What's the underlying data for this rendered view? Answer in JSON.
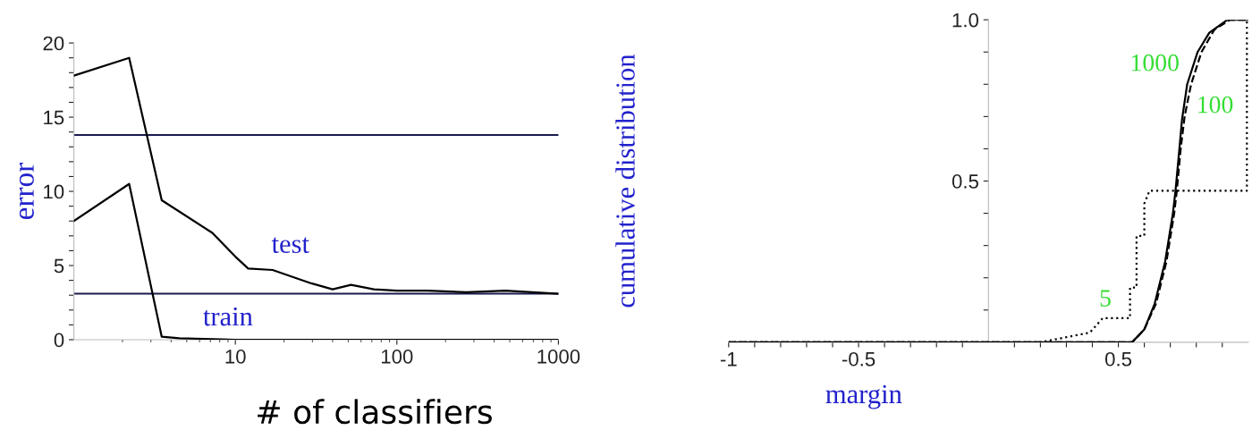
{
  "chart_data": [
    {
      "type": "line",
      "xlabel": "# of classifiers",
      "ylabel": "error",
      "log": "x",
      "xlim": [
        1,
        1000
      ],
      "ylim": [
        0,
        20
      ],
      "xticks": [
        10,
        100,
        1000
      ],
      "yticks": [
        0,
        {
          "value": 1,
          "label": null
        },
        {
          "value": 2,
          "label": null
        },
        {
          "value": 3,
          "label": null
        },
        {
          "value": 4,
          "label": null
        },
        5,
        {
          "value": 6,
          "label": null
        },
        {
          "value": 7,
          "label": null
        },
        {
          "value": 8,
          "label": null
        },
        {
          "value": 9,
          "label": null
        },
        10,
        {
          "value": 11,
          "label": null
        },
        {
          "value": 12,
          "label": null
        },
        {
          "value": 13,
          "label": null
        },
        {
          "value": 14,
          "label": null
        },
        15,
        {
          "value": 16,
          "label": null
        },
        {
          "value": 17,
          "label": null
        },
        {
          "value": 18,
          "label": null
        },
        {
          "value": 19,
          "label": null
        },
        20
      ],
      "series": [
        {
          "name": "test",
          "color": "#000000",
          "line_style": "solid",
          "x": [
            1,
            2.2,
            3.5,
            7.2,
            10,
            12,
            17,
            29.5,
            40,
            52,
            72,
            100,
            155,
            270,
            470,
            1000
          ],
          "values": [
            17.8,
            19.0,
            9.4,
            7.2,
            5.6,
            4.8,
            4.7,
            3.8,
            3.4,
            3.7,
            3.4,
            3.3,
            3.3,
            3.2,
            3.3,
            3.1
          ]
        },
        {
          "name": "train",
          "color": "#000000",
          "line_style": "solid",
          "x": [
            1,
            2.2,
            3.5,
            4.5,
            10,
            1000
          ],
          "values": [
            8.0,
            10.5,
            0.2,
            0.1,
            0,
            0
          ]
        }
      ],
      "ref_lines": [
        {
          "axis": "y",
          "value": 13.8,
          "color": "#1a1a4e"
        },
        {
          "axis": "y",
          "value": 3.1,
          "color": "#1a1a4e"
        }
      ]
    },
    {
      "type": "line",
      "xlabel": "margin",
      "ylabel": "cumulative distribution",
      "xlim": [
        -1,
        1
      ],
      "ylim": [
        0,
        1
      ],
      "xticks": [
        -1,
        {
          "value": -0.9,
          "label": null
        },
        {
          "value": -0.8,
          "label": null
        },
        {
          "value": -0.7,
          "label": null
        },
        {
          "value": -0.6,
          "label": null
        },
        -0.5,
        {
          "value": -0.4,
          "label": null
        },
        {
          "value": -0.3,
          "label": null
        },
        {
          "value": -0.2,
          "label": null
        },
        {
          "value": -0.1,
          "label": null
        },
        {
          "value": 0.1,
          "label": null
        },
        {
          "value": 0.2,
          "label": null
        },
        {
          "value": 0.3,
          "label": null
        },
        {
          "value": 0.4,
          "label": null
        },
        0.5,
        {
          "value": 0.6,
          "label": null
        },
        {
          "value": 0.7,
          "label": null
        },
        {
          "value": 0.8,
          "label": null
        },
        {
          "value": 0.9,
          "label": null
        }
      ],
      "yticks": [
        {
          "value": 0.1,
          "label": null
        },
        {
          "value": 0.2,
          "label": null
        },
        {
          "value": 0.3,
          "label": null
        },
        {
          "value": 0.4,
          "label": null
        },
        0.5,
        {
          "value": 0.6,
          "label": null
        },
        {
          "value": 0.7,
          "label": null
        },
        {
          "value": 0.8,
          "label": null
        },
        {
          "value": 0.9,
          "label": null
        },
        {
          "value": 1.0,
          "label": "1.0"
        }
      ],
      "series": [
        {
          "name": "5",
          "color": "#000000",
          "line_style": "dotted",
          "x": [
            -1,
            0.2,
            0.39,
            0.44,
            0.545,
            0.545,
            0.57,
            0.57,
            0.6,
            0.6,
            0.62,
            0.995,
            0.995
          ],
          "values": [
            0,
            0,
            0.03,
            0.075,
            0.075,
            0.17,
            0.17,
            0.33,
            0.33,
            0.43,
            0.47,
            0.47,
            1.0
          ]
        },
        {
          "name": "100",
          "color": "#000000",
          "line_style": "dashed",
          "x": [
            -1,
            0.3,
            0.553,
            0.6,
            0.645,
            0.685,
            0.715,
            0.725,
            0.74,
            0.755,
            0.78,
            0.82,
            0.87,
            0.93,
            1.0
          ],
          "values": [
            0,
            0,
            0,
            0.04,
            0.12,
            0.25,
            0.4,
            0.47,
            0.6,
            0.7,
            0.8,
            0.9,
            0.97,
            1.0,
            1.0
          ]
        },
        {
          "name": "1000",
          "color": "#000000",
          "line_style": "solid",
          "x": [
            -1,
            0.553,
            0.6,
            0.64,
            0.68,
            0.71,
            0.72,
            0.735,
            0.745,
            0.765,
            0.805,
            0.85,
            0.92,
            1.0
          ],
          "values": [
            0,
            0,
            0.04,
            0.12,
            0.25,
            0.4,
            0.47,
            0.6,
            0.69,
            0.8,
            0.9,
            0.96,
            1.0,
            1.0
          ]
        }
      ]
    }
  ]
}
